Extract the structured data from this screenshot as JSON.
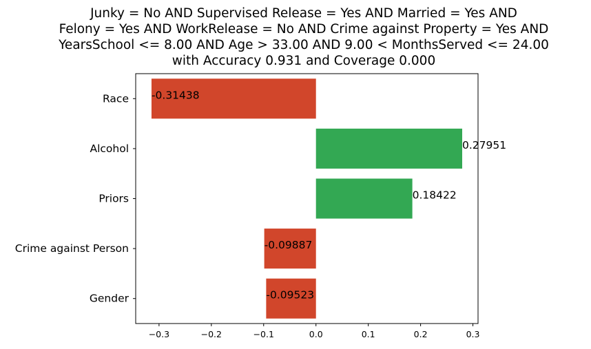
{
  "chart_data": {
    "type": "bar",
    "orientation": "horizontal",
    "title_lines": [
      "Junky = No AND Supervised Release = Yes AND Married = Yes AND",
      "Felony = Yes AND WorkRelease = No AND Crime against Property = Yes AND",
      "YearsSchool <= 8.00 AND Age > 33.00 AND 9.00 < MonthsServed <= 24.00",
      "with Accuracy 0.931 and Coverage 0.000"
    ],
    "categories": [
      "Race",
      "Alcohol",
      "Priors",
      "Crime against Person",
      "Gender"
    ],
    "values": [
      -0.31438,
      0.27951,
      0.18422,
      -0.09887,
      -0.09523
    ],
    "value_labels": [
      "-0.31438",
      "0.27951",
      "0.18422",
      "-0.09887",
      "-0.09523"
    ],
    "xticks": [
      -0.3,
      -0.2,
      -0.1,
      0.0,
      0.1,
      0.2,
      0.3
    ],
    "xtick_labels": [
      "−0.3",
      "−0.2",
      "−0.1",
      "0.0",
      "0.1",
      "0.2",
      "0.3"
    ],
    "xlim": [
      -0.3446,
      0.3098
    ],
    "xlabel": "",
    "ylabel": "",
    "grid": false,
    "colors": {
      "positive": "#33a853",
      "negative": "#d1462b"
    }
  }
}
